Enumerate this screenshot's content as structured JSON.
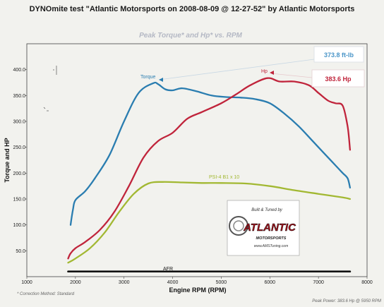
{
  "header": {
    "title": "DYNOmite test \"Atlantic Motorsports on 2008-08-09 @ 12-27-52\" by Atlantic Motorsports"
  },
  "footer": {
    "correction_note": "* Correction Method: Standard",
    "peak_power_note": "Peak Power: 383.6 Hp @ 5950 RPM"
  },
  "logo": {
    "tagline": "Built & Tuned by",
    "brand": "ATLANTIC",
    "sub": "MOTORSPORTS",
    "url": "www.AMSTuning.com"
  },
  "chart_data": {
    "type": "line",
    "title": "Peak Torque* and Hp* vs. RPM",
    "xlabel": "Engine RPM (RPM)",
    "ylabel": "Torque and HP",
    "xlim": [
      1000,
      8000
    ],
    "ylim": [
      0,
      450
    ],
    "x_ticks": [
      1000,
      2000,
      3000,
      4000,
      5000,
      6000,
      7000,
      8000
    ],
    "y_ticks": [
      50,
      100,
      150,
      200,
      250,
      300,
      350,
      400
    ],
    "grid": false,
    "series": [
      {
        "name": "Torque",
        "color": "#2a7db0",
        "x": [
          1900,
          1950,
          2000,
          2200,
          2400,
          2700,
          3000,
          3300,
          3600,
          3700,
          3850,
          4000,
          4200,
          4500,
          4800,
          5100,
          5400,
          5700,
          6000,
          6300,
          6600,
          6900,
          7200,
          7400,
          7500,
          7600,
          7650
        ],
        "y": [
          100,
          130,
          148,
          165,
          190,
          235,
          300,
          355,
          373.8,
          372,
          362,
          360,
          364,
          358,
          350,
          347,
          346,
          343,
          335,
          315,
          290,
          260,
          230,
          210,
          200,
          190,
          172
        ]
      },
      {
        "name": "Hp",
        "color": "#c0243b",
        "x": [
          1850,
          1900,
          2000,
          2200,
          2500,
          2800,
          3100,
          3400,
          3700,
          4000,
          4300,
          4600,
          5000,
          5300,
          5600,
          5950,
          6200,
          6500,
          6800,
          7000,
          7200,
          7350,
          7500,
          7600,
          7650
        ],
        "y": [
          35,
          45,
          55,
          67,
          90,
          125,
          175,
          230,
          262,
          278,
          305,
          318,
          335,
          352,
          370,
          383.6,
          377,
          377,
          370,
          355,
          340,
          335,
          330,
          290,
          245
        ]
      },
      {
        "name": "PSI-4 B1 x 10",
        "color": "#a2b832",
        "x": [
          1850,
          2000,
          2300,
          2600,
          2900,
          3200,
          3500,
          3800,
          4200,
          4600,
          5000,
          5500,
          6000,
          6500,
          7000,
          7500,
          7650
        ],
        "y": [
          27,
          35,
          55,
          85,
          125,
          160,
          180,
          183,
          182,
          181,
          181,
          180,
          175,
          167,
          160,
          153,
          150
        ]
      },
      {
        "name": "AFR",
        "color": "#111111",
        "x": [
          1850,
          7650
        ],
        "y": [
          10,
          10
        ]
      }
    ],
    "annotations": [
      {
        "text": "373.8 ft-lb",
        "series": "Torque"
      },
      {
        "text": "383.6 Hp",
        "series": "Hp"
      }
    ]
  }
}
